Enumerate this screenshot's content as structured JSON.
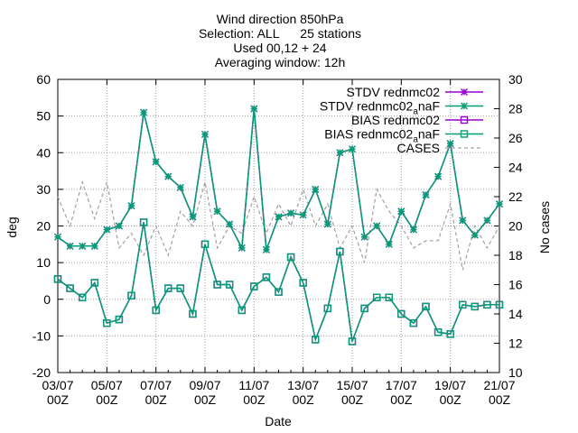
{
  "chart_data": {
    "type": "line",
    "title_lines": [
      "Wind direction 850hPa",
      "Selection: ALL      25 stations",
      "Used 00,12 + 24",
      "Averaging window: 12h"
    ],
    "xlabel": "Date",
    "ylabel": "deg",
    "y2label": "No cases",
    "ylim": [
      -20,
      60
    ],
    "y2lim": [
      10,
      30
    ],
    "xlim": [
      0,
      36
    ],
    "yticks": [
      -20,
      -10,
      0,
      10,
      20,
      30,
      40,
      50,
      60
    ],
    "y2ticks": [
      10,
      12,
      14,
      16,
      18,
      20,
      22,
      24,
      26,
      28,
      30
    ],
    "xticks": [
      {
        "x": 0,
        "line1": "03/07",
        "line2": "00Z"
      },
      {
        "x": 4,
        "line1": "05/07",
        "line2": "00Z"
      },
      {
        "x": 8,
        "line1": "07/07",
        "line2": "00Z"
      },
      {
        "x": 12,
        "line1": "09/07",
        "line2": "00Z"
      },
      {
        "x": 16,
        "line1": "11/07",
        "line2": "00Z"
      },
      {
        "x": 20,
        "line1": "13/07",
        "line2": "00Z"
      },
      {
        "x": 24,
        "line1": "15/07",
        "line2": "00Z"
      },
      {
        "x": 28,
        "line1": "17/07",
        "line2": "00Z"
      },
      {
        "x": 32,
        "line1": "19/07",
        "line2": "00Z"
      },
      {
        "x": 36,
        "line1": "21/07",
        "line2": "00Z"
      }
    ],
    "legend": {
      "placement": "top-right",
      "entries": [
        {
          "label": "STDV rednmc02",
          "color": "#9400d3",
          "marker": "star",
          "dash": false
        },
        {
          "label": "STDV rednmc02_a naF",
          "color": "#009e73",
          "marker": "star",
          "dash": false
        },
        {
          "label": "BIAS rednmc02",
          "color": "#9400d3",
          "marker": "square",
          "dash": false
        },
        {
          "label": "BIAS rednmc02_a naF",
          "color": "#009e73",
          "marker": "square",
          "dash": false
        },
        {
          "label": "CASES",
          "color": "#a0a0a0",
          "marker": "none",
          "dash": true
        }
      ]
    },
    "series": [
      {
        "name": "STDV rednmc02",
        "axis": "y",
        "marker": "star",
        "color": "#9400d3",
        "x": [
          0,
          1,
          2,
          3,
          4,
          5,
          6,
          7,
          8,
          9,
          10,
          11,
          12,
          13,
          14,
          15,
          16,
          17,
          18,
          19,
          20,
          21,
          22,
          23,
          24,
          25,
          26,
          27,
          28,
          29,
          30,
          31,
          32,
          33,
          34,
          35,
          36
        ],
        "y": [
          17,
          14.5,
          14.5,
          14.5,
          19,
          20,
          25.5,
          51,
          37.5,
          33.5,
          30.5,
          22.5,
          45,
          24,
          20.5,
          14,
          52,
          13.5,
          22.5,
          23.5,
          23,
          30,
          20.5,
          40,
          41,
          17,
          20,
          15,
          24,
          19,
          28.5,
          33.5,
          42.5,
          21.5,
          17.5,
          21.5,
          26
        ]
      },
      {
        "name": "STDV rednmc02_a naF",
        "axis": "y",
        "marker": "star",
        "color": "#009e73",
        "x": [
          0,
          1,
          2,
          3,
          4,
          5,
          6,
          7,
          8,
          9,
          10,
          11,
          12,
          13,
          14,
          15,
          16,
          17,
          18,
          19,
          20,
          21,
          22,
          23,
          24,
          25,
          26,
          27,
          28,
          29,
          30,
          31,
          32,
          33,
          34,
          35,
          36
        ],
        "y": [
          17,
          14.5,
          14.5,
          14.5,
          19,
          20,
          25.5,
          51,
          37.5,
          33.5,
          30.5,
          22.5,
          45,
          24,
          20.5,
          14,
          52,
          13.5,
          22.5,
          23.5,
          23,
          30,
          20.5,
          40,
          41,
          17,
          20,
          15,
          24,
          19,
          28.5,
          33.5,
          42.5,
          21.5,
          17.5,
          21.5,
          26
        ]
      },
      {
        "name": "BIAS rednmc02",
        "axis": "y",
        "marker": "square",
        "color": "#9400d3",
        "x": [
          0,
          1,
          2,
          3,
          4,
          5,
          6,
          7,
          8,
          9,
          10,
          11,
          12,
          13,
          14,
          15,
          16,
          17,
          18,
          19,
          20,
          21,
          22,
          23,
          24,
          25,
          26,
          27,
          28,
          29,
          30,
          31,
          32,
          33,
          34,
          35,
          36
        ],
        "y": [
          5.5,
          3,
          0.5,
          4.5,
          -6.5,
          -5.5,
          1,
          21,
          -3,
          3,
          3,
          -4,
          15,
          4,
          4,
          -3,
          3.5,
          6,
          2,
          11.5,
          4.5,
          -11,
          -2.5,
          13,
          -11.5,
          -2.5,
          0.5,
          0.5,
          -4,
          -6.5,
          -2,
          -9,
          -9.5,
          -1.5,
          -2,
          -1.5,
          -1.5
        ]
      },
      {
        "name": "BIAS rednmc02_a naF",
        "axis": "y",
        "marker": "square",
        "color": "#009e73",
        "x": [
          0,
          1,
          2,
          3,
          4,
          5,
          6,
          7,
          8,
          9,
          10,
          11,
          12,
          13,
          14,
          15,
          16,
          17,
          18,
          19,
          20,
          21,
          22,
          23,
          24,
          25,
          26,
          27,
          28,
          29,
          30,
          31,
          32,
          33,
          34,
          35,
          36
        ],
        "y": [
          5.5,
          3,
          0.5,
          4.5,
          -6.5,
          -5.5,
          1,
          21,
          -3,
          3,
          3,
          -4,
          15,
          4,
          4,
          -3,
          3.5,
          6,
          2,
          11.5,
          4.5,
          -11,
          -2.5,
          13,
          -11.5,
          -2.5,
          0.5,
          0.5,
          -4,
          -6.5,
          -2,
          -9,
          -9.5,
          -1.5,
          -2,
          -1.5,
          -1.5
        ]
      },
      {
        "name": "CASES",
        "axis": "y2",
        "marker": "none",
        "color": "#a0a0a0",
        "x": [
          0,
          1,
          2,
          3,
          4,
          5,
          6,
          7,
          8,
          9,
          10,
          11,
          12,
          13,
          14,
          15,
          16,
          17,
          18,
          19,
          20,
          21,
          22,
          23,
          24,
          25,
          26,
          27,
          28,
          29,
          30,
          31,
          32,
          33,
          34,
          35,
          36
        ],
        "y": [
          22,
          20,
          23,
          20.5,
          23,
          18.5,
          19.5,
          18,
          20,
          18,
          21,
          20,
          23,
          18.5,
          20,
          19.5,
          22,
          19.5,
          21.5,
          20,
          22.5,
          20,
          21.5,
          18.5,
          20,
          17.5,
          22.5,
          21,
          20,
          18.5,
          19,
          19,
          21.5,
          17,
          20,
          18.5,
          20
        ]
      }
    ]
  }
}
